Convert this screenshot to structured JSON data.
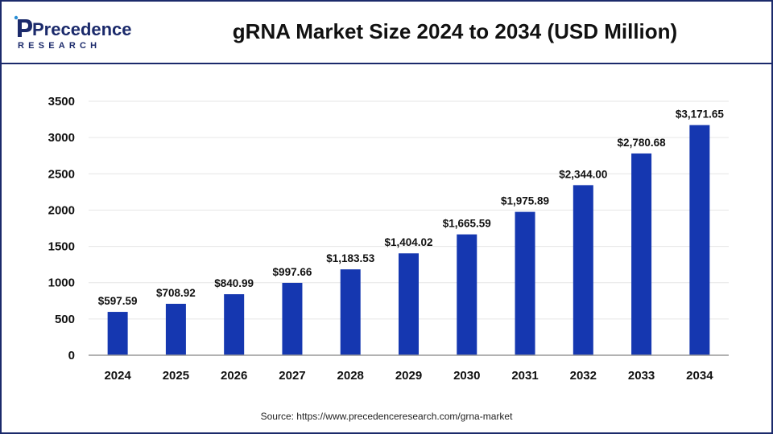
{
  "brand": {
    "logo_top": "Precedence",
    "logo_bottom": "RESEARCH"
  },
  "header": {
    "title": "gRNA Market Size 2024 to 2034 (USD Million)"
  },
  "footer": {
    "source": "Source: https://www.precedenceresearch.com/grna-market"
  },
  "colors": {
    "bar": "#1537b0",
    "axis": "#999999",
    "grid": "#e6e6e6",
    "brand": "#1b2a6b"
  },
  "chart_data": {
    "type": "bar",
    "title": "gRNA Market Size 2024 to 2034 (USD Million)",
    "xlabel": "",
    "ylabel": "",
    "ylim": [
      0,
      3500
    ],
    "yticks": [
      "0",
      "500",
      "1000",
      "1500",
      "2000",
      "2500",
      "3000",
      "3500"
    ],
    "ytick_values": [
      0,
      500,
      1000,
      1500,
      2000,
      2500,
      3000,
      3500
    ],
    "grid": true,
    "categories": [
      "2024",
      "2025",
      "2026",
      "2027",
      "2028",
      "2029",
      "2030",
      "2031",
      "2032",
      "2033",
      "2034"
    ],
    "values": [
      597.59,
      708.92,
      840.99,
      997.66,
      1183.53,
      1404.02,
      1665.59,
      1975.89,
      2344.0,
      2780.68,
      3171.65
    ],
    "data_labels": [
      "$597.59",
      "$708.92",
      "$840.99",
      "$997.66",
      "$1,183.53",
      "$1,404.02",
      "$1,665.59",
      "$1,975.89",
      "$2,344.00",
      "$2,780.68",
      "$3,171.65"
    ]
  }
}
